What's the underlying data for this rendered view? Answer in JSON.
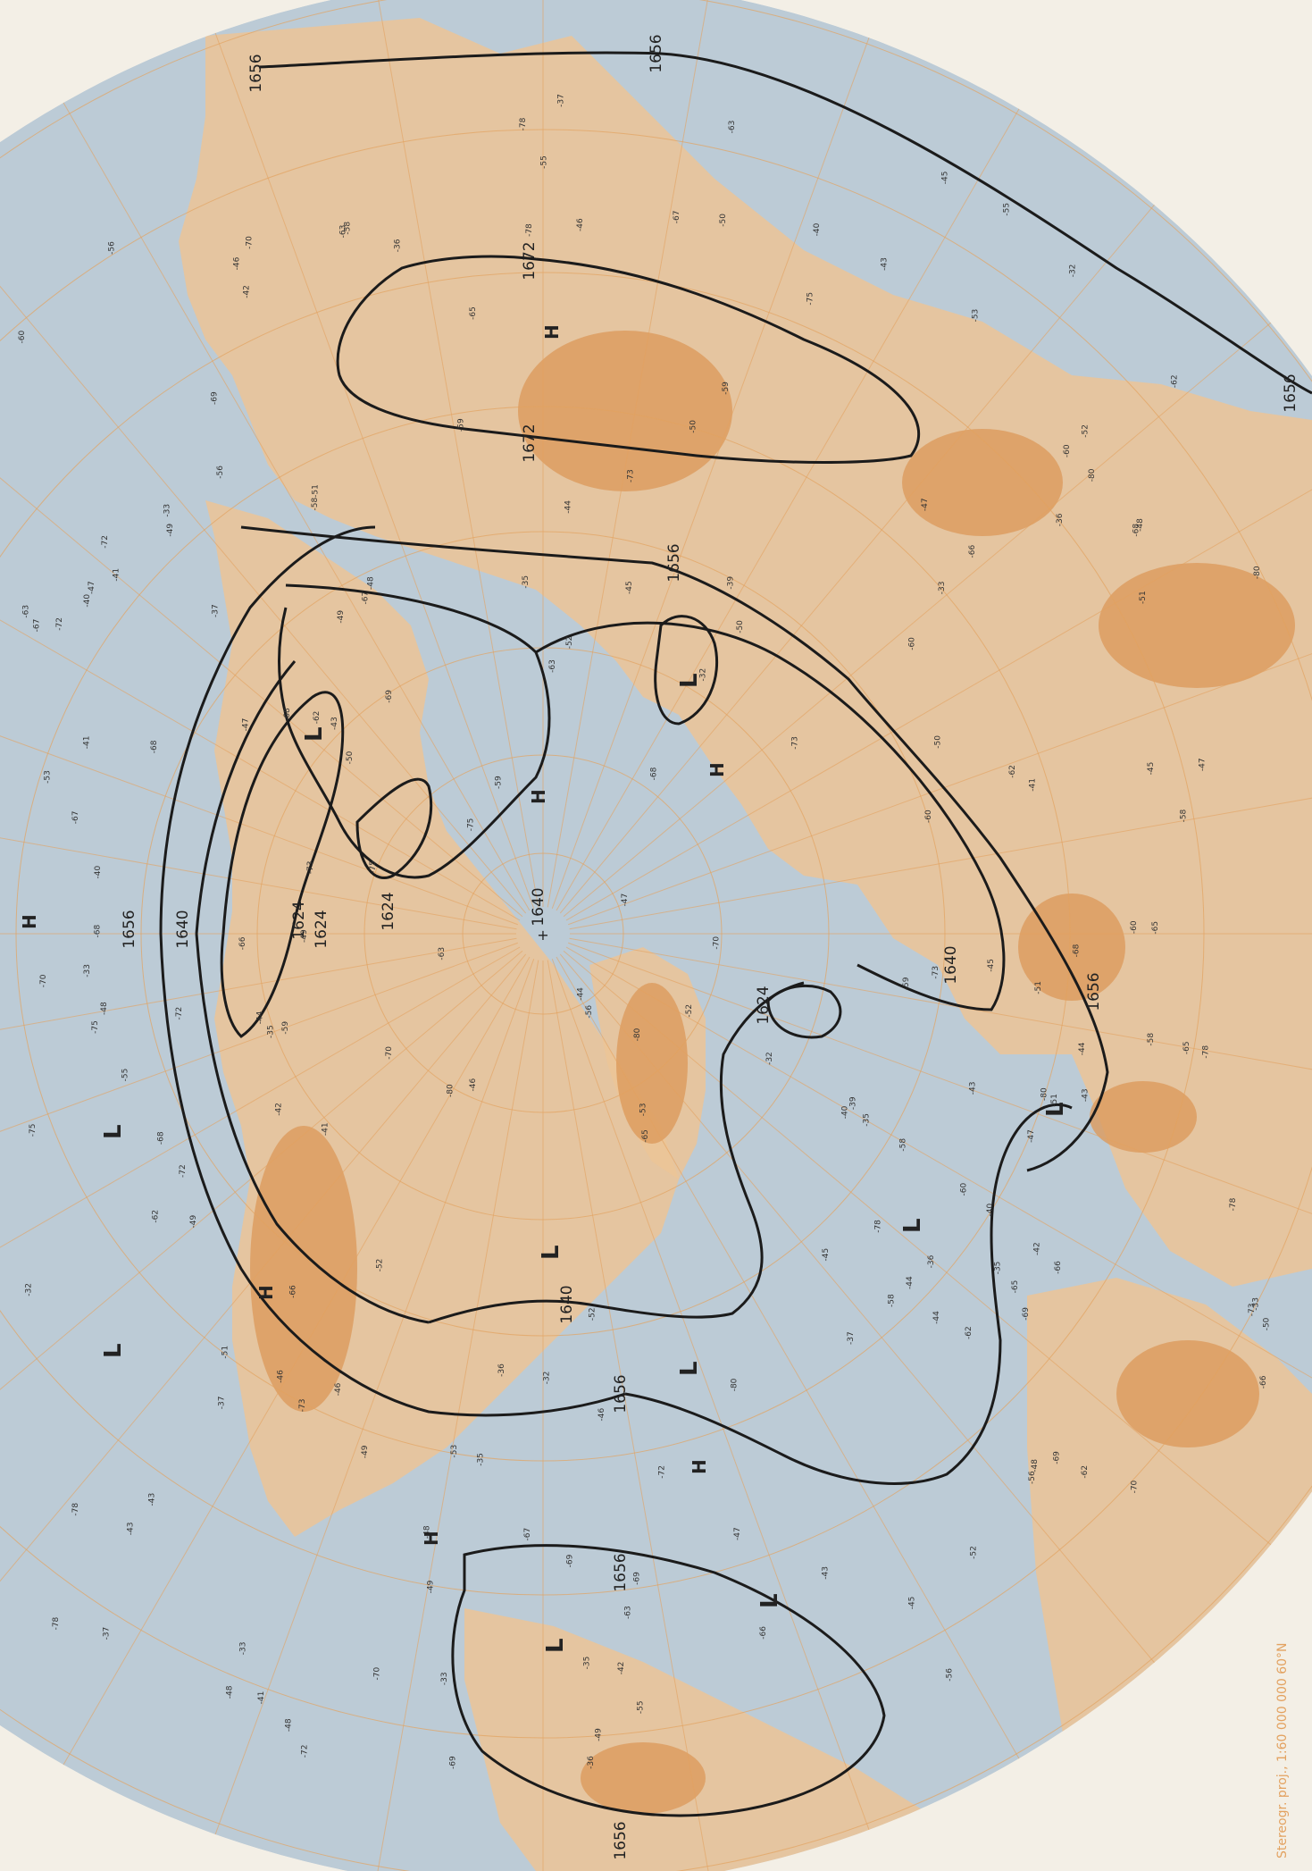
{
  "map": {
    "projection_note": "Stereogr. proj., 1:60 000 000  60°N",
    "center_mark": "+",
    "colors": {
      "ocean": "#bccbd6",
      "land_low": "#f6efe4",
      "land_mid": "#ecc496",
      "land_high": "#dc9a5c",
      "grid": "#e3a260",
      "isoline": "#1b1b1b",
      "paper": "#f3efe6"
    },
    "contour_labels": [
      {
        "text": "1656",
        "anchor": "top"
      },
      {
        "text": "1656",
        "anchor": "top-mid"
      },
      {
        "text": "1672",
        "anchor": "siberia-top"
      },
      {
        "text": "1672",
        "anchor": "siberia-bottom"
      },
      {
        "text": "1656",
        "anchor": "asia-mid"
      },
      {
        "text": "1656",
        "anchor": "right-edge"
      },
      {
        "text": "1640",
        "anchor": "pole"
      },
      {
        "text": "1624",
        "anchor": "pacific-inner"
      },
      {
        "text": "1640",
        "anchor": "pacific-mid"
      },
      {
        "text": "1656",
        "anchor": "pacific-outer"
      },
      {
        "text": "1624",
        "anchor": "pacific-low"
      },
      {
        "text": "1624",
        "anchor": "canada-low"
      },
      {
        "text": "1624",
        "anchor": "greenland-low"
      },
      {
        "text": "1640",
        "anchor": "europe"
      },
      {
        "text": "1656",
        "anchor": "africa"
      },
      {
        "text": "1640",
        "anchor": "atlantic"
      },
      {
        "text": "1656",
        "anchor": "us-east"
      },
      {
        "text": "1656",
        "anchor": "caribbean-top"
      },
      {
        "text": "1656",
        "anchor": "caribbean-bottom"
      }
    ],
    "pressure_centers": [
      {
        "type": "H",
        "id": "siberia-high"
      },
      {
        "type": "H",
        "id": "pacific-high"
      },
      {
        "type": "L",
        "id": "pacific-low-1"
      },
      {
        "type": "L",
        "id": "asia-low"
      },
      {
        "type": "H",
        "id": "arctic-high"
      },
      {
        "type": "H",
        "id": "scandinavia-high"
      },
      {
        "type": "L",
        "id": "canada-low"
      },
      {
        "type": "L",
        "id": "greenland-low"
      },
      {
        "type": "L",
        "id": "atlantic-low"
      },
      {
        "type": "H",
        "id": "us-west-high"
      },
      {
        "type": "L",
        "id": "pacific-low-2"
      },
      {
        "type": "L",
        "id": "pacific-low-3"
      },
      {
        "type": "H",
        "id": "gulf-high"
      },
      {
        "type": "H",
        "id": "mexico-high"
      },
      {
        "type": "L",
        "id": "caribbean-low-1"
      },
      {
        "type": "L",
        "id": "caribbean-low-2"
      },
      {
        "type": "L",
        "id": "europe-low"
      }
    ],
    "station_labels": [
      "-80",
      "-78",
      "-75",
      "-73",
      "-72",
      "-70",
      "-69",
      "-68",
      "-67",
      "-66",
      "-65",
      "-63",
      "-62",
      "-60",
      "-59",
      "-58",
      "-56",
      "-55",
      "-53",
      "-52",
      "-51",
      "-50",
      "-49",
      "-48",
      "-47",
      "-46",
      "-45",
      "-44",
      "-43",
      "-42",
      "-41",
      "-40",
      "-39",
      "-37",
      "-36",
      "-35",
      "-33",
      "-32"
    ]
  }
}
